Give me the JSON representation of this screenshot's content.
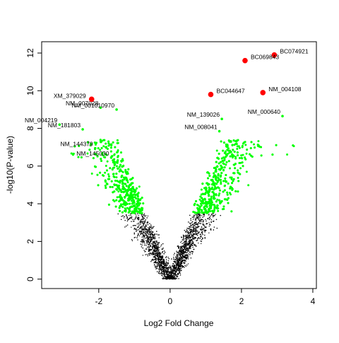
{
  "chart_data": {
    "type": "scatter",
    "title": "",
    "xlabel": "Log2 Fold Change",
    "ylabel": "-log10(P-value)",
    "xlim": [
      -3.6,
      4.1
    ],
    "ylim": [
      -0.5,
      12.6
    ],
    "xticks": [
      -2,
      0,
      2,
      4
    ],
    "yticks": [
      0,
      2,
      4,
      6,
      8,
      10,
      12
    ],
    "grid": false,
    "legend": "none",
    "colors": {
      "background": "#000000",
      "significant": "#00ff00",
      "top_hits": "#ff0000"
    },
    "top_hits": [
      {
        "label": "BC074921",
        "x": 2.92,
        "y": 11.9
      },
      {
        "label": "BC069843",
        "x": 2.1,
        "y": 11.6
      },
      {
        "label": "XM_379029",
        "x": -2.2,
        "y": 9.55
      },
      {
        "label": "BC044647",
        "x": 1.14,
        "y": 9.8
      },
      {
        "label": "NM_004108",
        "x": 2.6,
        "y": 9.9
      }
    ],
    "significant_points": [
      {
        "label": "NM_007028",
        "x": -1.95,
        "y": 9.1
      },
      {
        "label": "NM_001010970",
        "x": -1.5,
        "y": 9.0
      },
      {
        "label": "NM_000640",
        "x": 3.15,
        "y": 8.65
      },
      {
        "label": "NM_139026",
        "x": 1.45,
        "y": 8.5
      },
      {
        "label": "NM_004219",
        "x": -3.1,
        "y": 8.2
      },
      {
        "label": "NM_181803",
        "x": -2.45,
        "y": 7.95
      },
      {
        "label": "NM_008041",
        "x": 1.38,
        "y": 7.85
      },
      {
        "label": "NM_144379",
        "x": -2.1,
        "y": 6.95
      },
      {
        "label": "NM_145030",
        "x": -1.65,
        "y": 6.45
      }
    ],
    "threshold_y": 3.5
  }
}
